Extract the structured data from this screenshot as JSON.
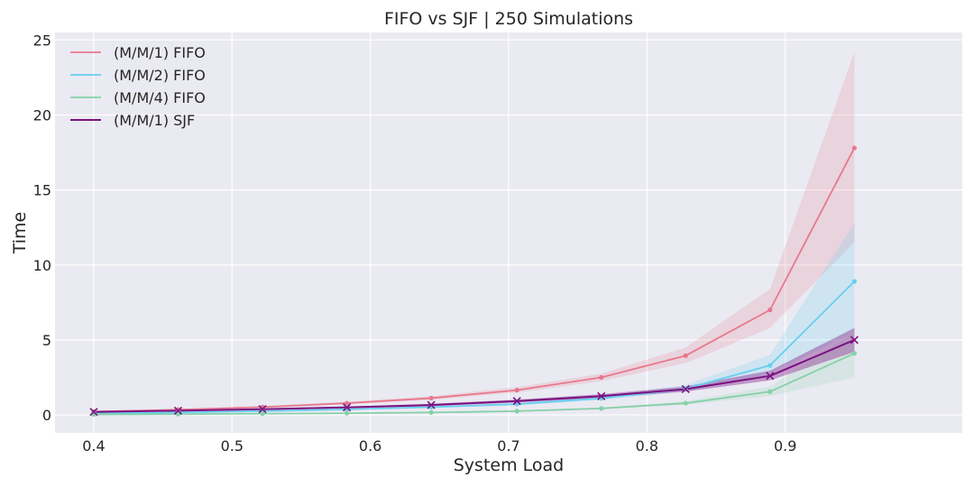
{
  "chart_data": {
    "type": "line",
    "title": "FIFO vs SJF | 250 Simulations",
    "xlabel": "System Load",
    "ylabel": "Time",
    "xlim": [
      0.372,
      1.028
    ],
    "ylim": [
      -1.2,
      25.5
    ],
    "x_ticks": [
      0.4,
      0.5,
      0.6,
      0.7,
      0.8,
      0.9
    ],
    "x_tick_labels": [
      "0.4",
      "0.5",
      "0.6",
      "0.7",
      "0.8",
      "0.9"
    ],
    "y_ticks": [
      0,
      5,
      10,
      15,
      20,
      25
    ],
    "y_tick_labels": [
      "0",
      "5",
      "10",
      "15",
      "20",
      "25"
    ],
    "grid": true,
    "legend_position": "top-left",
    "x": [
      0.4,
      0.461,
      0.522,
      0.583,
      0.644,
      0.706,
      0.767,
      0.828,
      0.889,
      0.95
    ],
    "series": [
      {
        "name": "(M/M/1) FIFO",
        "color": "#e8788c",
        "marker": "dot",
        "values": [
          0.22,
          0.35,
          0.52,
          0.78,
          1.12,
          1.65,
          2.5,
          3.95,
          7.0,
          17.8
        ],
        "lower": [
          0.19,
          0.3,
          0.46,
          0.7,
          1.0,
          1.48,
          2.25,
          3.45,
          5.8,
          11.5
        ],
        "upper": [
          0.25,
          0.4,
          0.58,
          0.87,
          1.25,
          1.85,
          2.75,
          4.5,
          8.4,
          24.2
        ]
      },
      {
        "name": "(M/M/2) FIFO",
        "color": "#66cfee",
        "marker": "dot",
        "values": [
          0.1,
          0.16,
          0.25,
          0.37,
          0.52,
          0.72,
          1.1,
          1.75,
          3.3,
          8.9
        ],
        "lower": [
          0.08,
          0.13,
          0.21,
          0.32,
          0.46,
          0.64,
          0.98,
          1.55,
          2.75,
          5.5
        ],
        "upper": [
          0.12,
          0.19,
          0.29,
          0.42,
          0.58,
          0.8,
          1.22,
          2.0,
          4.0,
          12.8
        ]
      },
      {
        "name": "(M/M/4) FIFO",
        "color": "#86d0a8",
        "marker": "dot",
        "values": [
          0.03,
          0.05,
          0.08,
          0.11,
          0.16,
          0.25,
          0.43,
          0.78,
          1.55,
          4.1
        ],
        "lower": [
          0.02,
          0.04,
          0.06,
          0.09,
          0.13,
          0.21,
          0.37,
          0.68,
          1.25,
          2.5
        ],
        "upper": [
          0.04,
          0.06,
          0.1,
          0.14,
          0.19,
          0.29,
          0.5,
          0.9,
          1.9,
          5.5
        ]
      },
      {
        "name": "(M/M/1) SJF",
        "color": "#7b1280",
        "marker": "x",
        "values": [
          0.2,
          0.28,
          0.38,
          0.5,
          0.66,
          0.92,
          1.25,
          1.72,
          2.6,
          5.0
        ],
        "lower": [
          0.17,
          0.24,
          0.33,
          0.44,
          0.58,
          0.82,
          1.12,
          1.55,
          2.3,
          4.2
        ],
        "upper": [
          0.23,
          0.32,
          0.43,
          0.56,
          0.74,
          1.02,
          1.38,
          1.9,
          2.95,
          5.8
        ]
      }
    ]
  }
}
